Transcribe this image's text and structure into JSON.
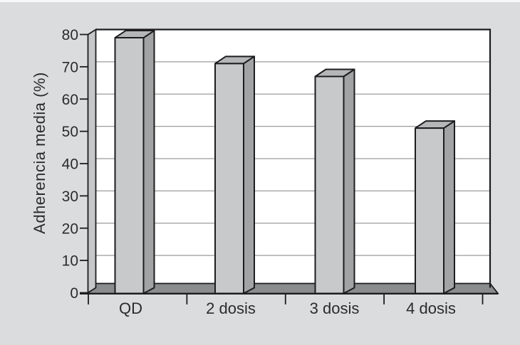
{
  "chart_data": {
    "type": "bar",
    "title": "",
    "categories": [
      "QD",
      "2 dosis",
      "3 dosis",
      "4 dosis"
    ],
    "values": [
      79,
      71,
      67,
      51
    ],
    "xlabel": "",
    "ylabel": "Adherencia media (%)",
    "ylim": [
      0,
      80
    ],
    "ytick_interval": 10,
    "ytick_labels": [
      "0",
      "10",
      "20",
      "30",
      "40",
      "50",
      "60",
      "70",
      "80"
    ],
    "grid": "horizontal",
    "legend": "none",
    "style": "3d-block-bars-grayscale",
    "colors": {
      "background": "#dbdcde",
      "plot_background": "#ffffff",
      "bar_front": "#c8c9cb",
      "bar_side": "#a2a3a5",
      "bar_top": "#b5b6b8",
      "wall": "#c6c7c9",
      "floor": "#8b8c8e",
      "gridline": "#9b9b9d",
      "outline": "#1d1d1f",
      "text": "#2b2b2b"
    }
  }
}
